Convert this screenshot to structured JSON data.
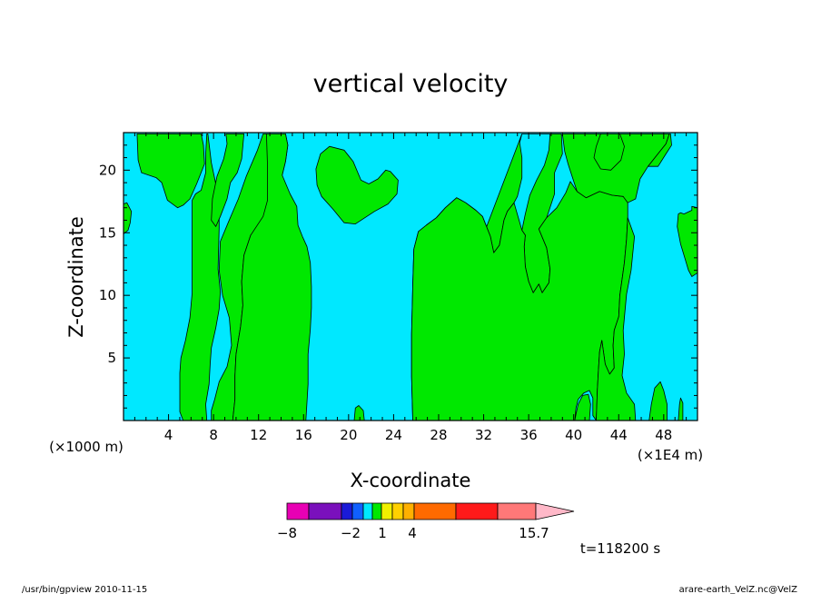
{
  "chart_data": {
    "type": "contour",
    "title": "vertical velocity",
    "xlabel": "X-coordinate",
    "ylabel": "Z-coordinate",
    "x_unit_left": "(×1000 m)",
    "x_unit_right": "(×1E4 m)",
    "xlim": [
      0,
      51
    ],
    "ylim": [
      0,
      23
    ],
    "x_ticks": [
      4,
      8,
      12,
      16,
      20,
      24,
      28,
      32,
      36,
      40,
      44,
      48
    ],
    "y_ticks": [
      5,
      10,
      15,
      20
    ],
    "time_label": "t=118200 s",
    "field_colors": {
      "background": "#00e8ff",
      "updraft": "#00e800",
      "outline": "#000000"
    },
    "updraft_regions": [
      [
        [
          1.2,
          22.9
        ],
        [
          1.3,
          20.8
        ],
        [
          1.6,
          19.8
        ],
        [
          2.9,
          19.4
        ],
        [
          3.4,
          19.0
        ],
        [
          3.9,
          17.6
        ],
        [
          4.8,
          17.0
        ],
        [
          5.3,
          17.2
        ],
        [
          5.9,
          17.7
        ],
        [
          6.5,
          18.9
        ],
        [
          7.2,
          20.5
        ],
        [
          7.1,
          22.0
        ],
        [
          6.9,
          22.9
        ]
      ],
      [
        [
          7.5,
          22.9
        ],
        [
          7.8,
          20.6
        ],
        [
          8.2,
          18.9
        ],
        [
          8.5,
          16.8
        ],
        [
          8.5,
          15.4
        ],
        [
          8.4,
          12.1
        ],
        [
          8.6,
          10.3
        ],
        [
          8.5,
          8.9
        ],
        [
          8.2,
          7.4
        ],
        [
          7.8,
          5.8
        ],
        [
          7.7,
          4.5
        ],
        [
          7.6,
          2.9
        ],
        [
          7.3,
          1.3
        ],
        [
          7.4,
          0
        ],
        [
          5.3,
          0
        ],
        [
          5.0,
          0.7
        ],
        [
          5.0,
          2.2
        ],
        [
          5.0,
          3.8
        ],
        [
          5.1,
          5.0
        ],
        [
          5.5,
          6.4
        ],
        [
          5.9,
          8.2
        ],
        [
          6.1,
          10.2
        ],
        [
          6.1,
          13.0
        ],
        [
          6.1,
          15.4
        ],
        [
          6.1,
          17.6
        ],
        [
          6.4,
          18.1
        ],
        [
          6.9,
          18.4
        ],
        [
          7.3,
          19.8
        ],
        [
          7.3,
          21.3
        ],
        [
          7.4,
          22.9
        ]
      ],
      [
        [
          10.7,
          22.9
        ],
        [
          10.5,
          20.9
        ],
        [
          10.1,
          19.8
        ],
        [
          9.5,
          19.0
        ],
        [
          9.2,
          17.7
        ],
        [
          8.6,
          16.3
        ],
        [
          8.2,
          15.5
        ],
        [
          7.8,
          16.0
        ],
        [
          7.9,
          17.7
        ],
        [
          8.3,
          19.5
        ],
        [
          8.9,
          20.9
        ],
        [
          9.2,
          22.1
        ],
        [
          9.1,
          22.9
        ]
      ],
      [
        [
          8.8,
          10.0
        ],
        [
          9.4,
          8.2
        ],
        [
          9.6,
          6.0
        ],
        [
          9.2,
          4.3
        ],
        [
          8.5,
          3.1
        ],
        [
          8.1,
          1.7
        ],
        [
          7.8,
          0.8
        ],
        [
          7.8,
          0
        ],
        [
          9.7,
          0
        ],
        [
          9.9,
          1.7
        ],
        [
          9.9,
          3.6
        ],
        [
          10.0,
          5.3
        ],
        [
          10.4,
          7.5
        ],
        [
          10.6,
          9.2
        ],
        [
          10.5,
          11.1
        ],
        [
          10.7,
          13.2
        ],
        [
          11.3,
          14.8
        ],
        [
          12.1,
          15.3
        ],
        [
          12.9,
          16.3
        ],
        [
          13.4,
          17.4
        ],
        [
          13.8,
          18.8
        ],
        [
          14.1,
          19.6
        ],
        [
          14.4,
          20.7
        ],
        [
          14.6,
          22.0
        ],
        [
          14.4,
          22.9
        ],
        [
          12.4,
          22.9
        ],
        [
          11.9,
          21.6
        ],
        [
          10.9,
          19.5
        ],
        [
          10.2,
          17.7
        ],
        [
          9.3,
          15.8
        ],
        [
          8.6,
          14.3
        ],
        [
          8.5,
          12.0
        ]
      ],
      [
        [
          11.5,
          0
        ],
        [
          11.5,
          1.7
        ],
        [
          11.6,
          2.9
        ],
        [
          12.1,
          3.7
        ],
        [
          12.6,
          3.4
        ],
        [
          13.1,
          2.5
        ],
        [
          13.3,
          1.3
        ],
        [
          13.3,
          0
        ]
      ],
      [
        [
          16.2,
          0
        ],
        [
          16.4,
          2.9
        ],
        [
          16.4,
          5.3
        ],
        [
          16.6,
          7.3
        ],
        [
          16.7,
          9.0
        ],
        [
          16.7,
          10.7
        ],
        [
          16.6,
          12.6
        ],
        [
          16.3,
          13.9
        ],
        [
          15.9,
          14.7
        ],
        [
          15.5,
          15.6
        ],
        [
          15.4,
          17.1
        ],
        [
          14.8,
          18.1
        ],
        [
          14.1,
          19.6
        ],
        [
          14.4,
          20.7
        ],
        [
          14.6,
          22.0
        ],
        [
          14.4,
          22.9
        ],
        [
          12.7,
          22.9
        ],
        [
          12.8,
          20.2
        ],
        [
          12.8,
          17.6
        ],
        [
          12.4,
          16.3
        ],
        [
          11.3,
          14.8
        ],
        [
          10.7,
          13.2
        ],
        [
          10.5,
          11.1
        ],
        [
          10.6,
          9.2
        ],
        [
          10.4,
          7.5
        ],
        [
          10.0,
          5.3
        ],
        [
          9.9,
          3.6
        ],
        [
          9.9,
          1.7
        ],
        [
          9.7,
          0
        ]
      ],
      [
        [
          17.1,
          20.1
        ],
        [
          17.5,
          21.3
        ],
        [
          18.3,
          21.9
        ],
        [
          19.6,
          21.6
        ],
        [
          20.4,
          20.7
        ],
        [
          21.1,
          19.2
        ],
        [
          21.8,
          18.9
        ],
        [
          22.6,
          19.3
        ],
        [
          23.3,
          20.0
        ],
        [
          23.7,
          19.9
        ],
        [
          24.4,
          19.2
        ],
        [
          24.3,
          18.1
        ],
        [
          23.5,
          17.3
        ],
        [
          22.3,
          16.7
        ],
        [
          20.6,
          15.7
        ],
        [
          19.6,
          15.8
        ],
        [
          18.6,
          16.9
        ],
        [
          17.6,
          17.9
        ],
        [
          17.2,
          18.8
        ]
      ],
      [
        [
          20.5,
          0
        ],
        [
          20.6,
          1.0
        ],
        [
          20.9,
          1.2
        ],
        [
          21.3,
          0.8
        ],
        [
          21.4,
          0
        ]
      ],
      [
        [
          25.7,
          0
        ],
        [
          25.6,
          3.5
        ],
        [
          25.6,
          6.9
        ],
        [
          25.7,
          10.8
        ],
        [
          25.8,
          13.7
        ],
        [
          26.2,
          15.1
        ],
        [
          26.9,
          15.6
        ],
        [
          27.8,
          16.2
        ],
        [
          28.6,
          17.0
        ],
        [
          29.6,
          17.8
        ],
        [
          30.4,
          17.4
        ],
        [
          31.3,
          16.8
        ],
        [
          31.9,
          16.3
        ],
        [
          32.6,
          14.7
        ],
        [
          32.9,
          13.4
        ],
        [
          33.4,
          14.0
        ],
        [
          33.8,
          16.0
        ],
        [
          34.1,
          16.7
        ],
        [
          34.7,
          17.4
        ],
        [
          35.0,
          17.9
        ],
        [
          35.4,
          19.4
        ],
        [
          35.4,
          21.0
        ],
        [
          35.2,
          22.2
        ],
        [
          35.4,
          22.9
        ],
        [
          38.9,
          22.9
        ],
        [
          39.0,
          21.3
        ],
        [
          38.3,
          19.8
        ],
        [
          38.3,
          18.1
        ],
        [
          37.6,
          16.2
        ],
        [
          36.9,
          15.3
        ],
        [
          37.6,
          13.8
        ],
        [
          37.9,
          12.1
        ],
        [
          37.8,
          11.0
        ],
        [
          37.2,
          10.2
        ],
        [
          36.9,
          10.9
        ],
        [
          36.4,
          10.2
        ],
        [
          36.0,
          11.1
        ],
        [
          35.7,
          12.3
        ],
        [
          35.6,
          13.9
        ],
        [
          35.7,
          14.8
        ],
        [
          35.4,
          15.2
        ],
        [
          35.7,
          16.5
        ],
        [
          36.1,
          18.0
        ],
        [
          36.7,
          19.2
        ],
        [
          37.4,
          20.4
        ],
        [
          37.8,
          21.6
        ],
        [
          37.9,
          22.9
        ],
        [
          35.4,
          22.9
        ]
      ],
      [
        [
          25.7,
          0
        ],
        [
          41.4,
          0
        ],
        [
          41.5,
          1.3
        ],
        [
          41.3,
          2.1
        ],
        [
          40.8,
          2.0
        ],
        [
          40.4,
          1.3
        ],
        [
          40.2,
          0.5
        ],
        [
          40.1,
          0
        ],
        [
          40.2,
          1.0
        ],
        [
          40.4,
          1.7
        ],
        [
          40.9,
          2.2
        ],
        [
          41.4,
          2.4
        ],
        [
          41.7,
          1.8
        ],
        [
          41.7,
          0.4
        ],
        [
          42.0,
          0
        ],
        [
          42.1,
          2.4
        ],
        [
          42.2,
          4.0
        ],
        [
          42.3,
          5.5
        ],
        [
          42.5,
          6.4
        ],
        [
          42.8,
          4.5
        ],
        [
          43.2,
          3.7
        ],
        [
          43.6,
          4.2
        ],
        [
          43.5,
          6.0
        ],
        [
          43.6,
          7.2
        ],
        [
          44.0,
          8.3
        ],
        [
          44.1,
          10.0
        ],
        [
          44.3,
          11.3
        ],
        [
          44.5,
          12.6
        ],
        [
          44.7,
          14.5
        ],
        [
          44.8,
          16.2
        ],
        [
          44.8,
          17.4
        ],
        [
          44.4,
          17.9
        ],
        [
          43.4,
          18.0
        ],
        [
          42.3,
          18.3
        ],
        [
          41.1,
          17.8
        ],
        [
          40.3,
          18.3
        ],
        [
          39.7,
          19.1
        ],
        [
          39.3,
          18.2
        ],
        [
          38.5,
          17.0
        ],
        [
          37.6,
          16.2
        ],
        [
          36.9,
          15.3
        ],
        [
          37.6,
          13.8
        ],
        [
          37.9,
          12.1
        ],
        [
          37.8,
          11.0
        ],
        [
          37.2,
          10.2
        ],
        [
          36.9,
          10.9
        ],
        [
          36.4,
          10.2
        ],
        [
          36.0,
          11.1
        ],
        [
          35.7,
          12.3
        ],
        [
          35.6,
          13.9
        ],
        [
          35.7,
          14.8
        ],
        [
          35.4,
          15.2
        ],
        [
          34.7,
          17.4
        ],
        [
          34.1,
          16.7
        ],
        [
          33.8,
          16.0
        ],
        [
          33.4,
          14.0
        ],
        [
          32.9,
          13.4
        ],
        [
          32.6,
          14.7
        ],
        [
          31.9,
          16.3
        ],
        [
          31.3,
          16.8
        ],
        [
          30.4,
          17.4
        ],
        [
          29.6,
          17.8
        ],
        [
          28.6,
          17.0
        ],
        [
          27.8,
          16.2
        ],
        [
          26.9,
          15.6
        ],
        [
          26.2,
          15.1
        ],
        [
          25.8,
          13.7
        ],
        [
          25.7,
          10.8
        ],
        [
          25.6,
          6.9
        ],
        [
          25.6,
          3.5
        ]
      ],
      [
        [
          39.0,
          22.9
        ],
        [
          39.2,
          21.5
        ],
        [
          39.5,
          20.5
        ],
        [
          39.9,
          19.4
        ],
        [
          40.3,
          18.3
        ],
        [
          41.1,
          17.8
        ],
        [
          42.3,
          18.3
        ],
        [
          43.4,
          18.0
        ],
        [
          44.4,
          17.9
        ],
        [
          44.8,
          17.4
        ],
        [
          45.5,
          17.7
        ],
        [
          45.9,
          19.3
        ],
        [
          46.6,
          20.3
        ],
        [
          47.4,
          21.2
        ],
        [
          48.2,
          22.1
        ],
        [
          48.5,
          22.9
        ]
      ],
      [
        [
          44.8,
          16.2
        ],
        [
          45.4,
          14.7
        ],
        [
          45.1,
          12.0
        ],
        [
          44.7,
          10.1
        ],
        [
          44.4,
          7.2
        ],
        [
          44.5,
          5.3
        ],
        [
          44.3,
          3.6
        ],
        [
          44.7,
          2.2
        ],
        [
          45.4,
          1.3
        ],
        [
          45.5,
          0
        ],
        [
          42.0,
          0
        ],
        [
          42.1,
          2.4
        ],
        [
          42.2,
          4.0
        ],
        [
          42.3,
          5.5
        ],
        [
          42.5,
          6.4
        ],
        [
          42.8,
          4.5
        ],
        [
          43.2,
          3.7
        ],
        [
          43.6,
          4.2
        ],
        [
          43.5,
          6.0
        ],
        [
          43.6,
          7.2
        ],
        [
          44.0,
          8.3
        ],
        [
          44.1,
          10.0
        ],
        [
          44.3,
          11.3
        ],
        [
          44.5,
          12.6
        ],
        [
          44.7,
          14.5
        ]
      ],
      [
        [
          46.7,
          0
        ],
        [
          46.9,
          1.3
        ],
        [
          47.2,
          2.6
        ],
        [
          47.7,
          3.1
        ],
        [
          48.0,
          2.4
        ],
        [
          48.3,
          1.3
        ],
        [
          48.3,
          0
        ]
      ],
      [
        [
          49.3,
          0
        ],
        [
          49.4,
          1.3
        ],
        [
          49.5,
          1.8
        ],
        [
          49.7,
          1.4
        ],
        [
          49.7,
          0
        ]
      ],
      [
        [
          0,
          16.4
        ],
        [
          0,
          17.3
        ],
        [
          0.3,
          17.4
        ],
        [
          0.7,
          16.7
        ],
        [
          0.6,
          15.8
        ],
        [
          0.4,
          15.2
        ],
        [
          0,
          14.9
        ]
      ],
      [
        [
          49.2,
          15.5
        ],
        [
          49.3,
          16.5
        ],
        [
          49.5,
          16.6
        ],
        [
          49.8,
          16.5
        ],
        [
          50.5,
          16.8
        ],
        [
          50.5,
          17.1
        ],
        [
          51,
          17.0
        ],
        [
          51,
          11.8
        ],
        [
          50.5,
          11.5
        ],
        [
          50.2,
          12.0
        ],
        [
          49.9,
          12.9
        ],
        [
          49.5,
          14.1
        ]
      ],
      [
        [
          46.6,
          20.3
        ],
        [
          47.5,
          20.3
        ],
        [
          48.2,
          21.3
        ],
        [
          48.7,
          22.0
        ],
        [
          48.6,
          22.9
        ],
        [
          48.5,
          22.9
        ],
        [
          48.2,
          22.1
        ],
        [
          47.4,
          21.2
        ]
      ],
      [
        [
          42.0,
          21.9
        ],
        [
          41.8,
          21.0
        ],
        [
          42.4,
          20.1
        ],
        [
          43.3,
          20.0
        ],
        [
          44.2,
          20.8
        ],
        [
          44.5,
          21.9
        ],
        [
          44.1,
          22.9
        ],
        [
          42.4,
          22.9
        ]
      ]
    ],
    "colorbar": {
      "labels": [
        "-8",
        "-2",
        "1",
        "4",
        "15.7"
      ],
      "colors": [
        "#e800b4",
        "#7a10bc",
        "#1a1ad8",
        "#1060ff",
        "#00e8ff",
        "#00e800",
        "#f0f000",
        "#ffd000",
        "#ffb000",
        "#ff6a00",
        "#ff1a1a",
        "#ff7878",
        "#ffb8c8"
      ]
    }
  },
  "footer": {
    "left": "/usr/bin/gpview  2010-11-15",
    "right": "arare-earth_VelZ.nc@VelZ"
  }
}
